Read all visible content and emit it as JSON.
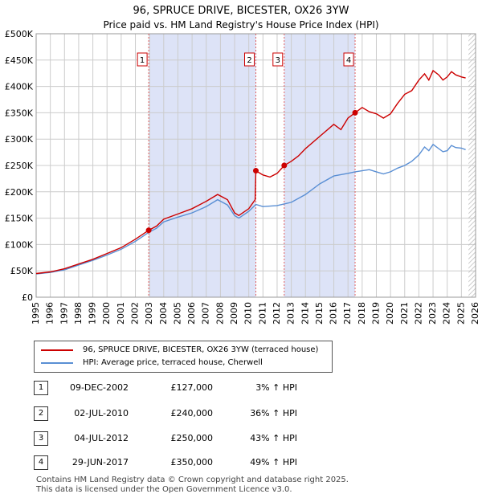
{
  "chart_data": {
    "type": "line",
    "title": "96, SPRUCE DRIVE, BICESTER, OX26 3YW",
    "subtitle": "Price paid vs. HM Land Registry's House Price Index (HPI)",
    "xlim": [
      1995,
      2026
    ],
    "ylim": [
      0,
      500000
    ],
    "x_ticks": [
      1995,
      1996,
      1997,
      1998,
      1999,
      2000,
      2001,
      2002,
      2003,
      2004,
      2005,
      2006,
      2007,
      2008,
      2009,
      2010,
      2011,
      2012,
      2013,
      2014,
      2015,
      2016,
      2017,
      2018,
      2019,
      2020,
      2021,
      2022,
      2023,
      2024,
      2025,
      2026
    ],
    "y_ticks": [
      {
        "value": 0,
        "label": "£0"
      },
      {
        "value": 50000,
        "label": "£50K"
      },
      {
        "value": 100000,
        "label": "£100K"
      },
      {
        "value": 150000,
        "label": "£150K"
      },
      {
        "value": 200000,
        "label": "£200K"
      },
      {
        "value": 250000,
        "label": "£250K"
      },
      {
        "value": 300000,
        "label": "£300K"
      },
      {
        "value": 350000,
        "label": "£350K"
      },
      {
        "value": 400000,
        "label": "£400K"
      },
      {
        "value": 450000,
        "label": "£450K"
      },
      {
        "value": 500000,
        "label": "£500K"
      }
    ],
    "shaded_ranges": [
      [
        2002.94,
        2010.5
      ],
      [
        2012.5,
        2017.5
      ]
    ],
    "forecast_start": 2025.5,
    "series": [
      {
        "name": "96, SPRUCE DRIVE, BICESTER, OX26 3YW (terraced house)",
        "color": "#cc0000",
        "x": [
          1995,
          1996,
          1997,
          1998,
          1999,
          2000,
          2001,
          2002,
          2002.94,
          2003.5,
          2004,
          2005,
          2006,
          2007,
          2007.8,
          2008.5,
          2009,
          2009.3,
          2010,
          2010.45,
          2010.5,
          2011,
          2011.5,
          2012,
          2012.5,
          2013,
          2013.5,
          2014,
          2015,
          2016,
          2016.5,
          2017,
          2017.5,
          2018,
          2018.5,
          2019,
          2019.5,
          2020,
          2020.5,
          2021,
          2021.5,
          2022,
          2022.4,
          2022.7,
          2023,
          2023.4,
          2023.7,
          2024,
          2024.3,
          2024.6,
          2025,
          2025.3
        ],
        "values": [
          45000,
          48000,
          54000,
          63000,
          72000,
          83000,
          94000,
          110000,
          127000,
          135000,
          148000,
          158000,
          168000,
          182000,
          195000,
          185000,
          160000,
          155000,
          168000,
          185000,
          240000,
          232000,
          228000,
          235000,
          250000,
          258000,
          268000,
          282000,
          305000,
          328000,
          318000,
          340000,
          350000,
          360000,
          352000,
          348000,
          340000,
          348000,
          368000,
          385000,
          392000,
          412000,
          424000,
          412000,
          430000,
          422000,
          412000,
          418000,
          428000,
          422000,
          418000,
          416000
        ]
      },
      {
        "name": "HPI: Average price, terraced house, Cherwell",
        "color": "#5a8fd4",
        "x": [
          1995,
          1996,
          1997,
          1998,
          1999,
          2000,
          2001,
          2002,
          2002.94,
          2003.5,
          2004,
          2005,
          2006,
          2007,
          2007.8,
          2008.5,
          2009,
          2009.3,
          2010,
          2010.5,
          2011,
          2012,
          2013,
          2014,
          2015,
          2016,
          2017,
          2017.5,
          2018,
          2018.5,
          2019,
          2019.5,
          2020,
          2020.5,
          2021,
          2021.5,
          2022,
          2022.4,
          2022.7,
          2023,
          2023.4,
          2023.7,
          2024,
          2024.3,
          2024.6,
          2025,
          2025.3
        ],
        "values": [
          44000,
          47000,
          52000,
          61000,
          70000,
          80000,
          91000,
          106000,
          123000,
          131000,
          143000,
          152000,
          160000,
          172000,
          185000,
          175000,
          155000,
          150000,
          163000,
          176000,
          172000,
          174000,
          180000,
          195000,
          215000,
          230000,
          235000,
          238000,
          240000,
          242000,
          238000,
          234000,
          238000,
          245000,
          250000,
          258000,
          270000,
          285000,
          278000,
          290000,
          282000,
          276000,
          278000,
          288000,
          284000,
          283000,
          280000
        ]
      }
    ],
    "sales": [
      {
        "n": "1",
        "x": 2002.94,
        "y": 127000
      },
      {
        "n": "2",
        "x": 2010.5,
        "y": 240000
      },
      {
        "n": "3",
        "x": 2012.5,
        "y": 250000
      },
      {
        "n": "4",
        "x": 2017.5,
        "y": 350000
      }
    ]
  },
  "legend": {
    "items": [
      {
        "label": "96, SPRUCE DRIVE, BICESTER, OX26 3YW (terraced house)",
        "color": "#cc0000"
      },
      {
        "label": "HPI: Average price, terraced house, Cherwell",
        "color": "#5a8fd4"
      }
    ]
  },
  "transactions": [
    {
      "n": "1",
      "date": "09-DEC-2002",
      "price": "£127,000",
      "diff": "3% ↑ HPI"
    },
    {
      "n": "2",
      "date": "02-JUL-2010",
      "price": "£240,000",
      "diff": "36% ↑ HPI"
    },
    {
      "n": "3",
      "date": "04-JUL-2012",
      "price": "£250,000",
      "diff": "43% ↑ HPI"
    },
    {
      "n": "4",
      "date": "29-JUN-2017",
      "price": "£350,000",
      "diff": "49% ↑ HPI"
    }
  ],
  "footer": {
    "line1": "Contains HM Land Registry data © Crown copyright and database right 2025.",
    "line2": "This data is licensed under the Open Government Licence v3.0."
  }
}
